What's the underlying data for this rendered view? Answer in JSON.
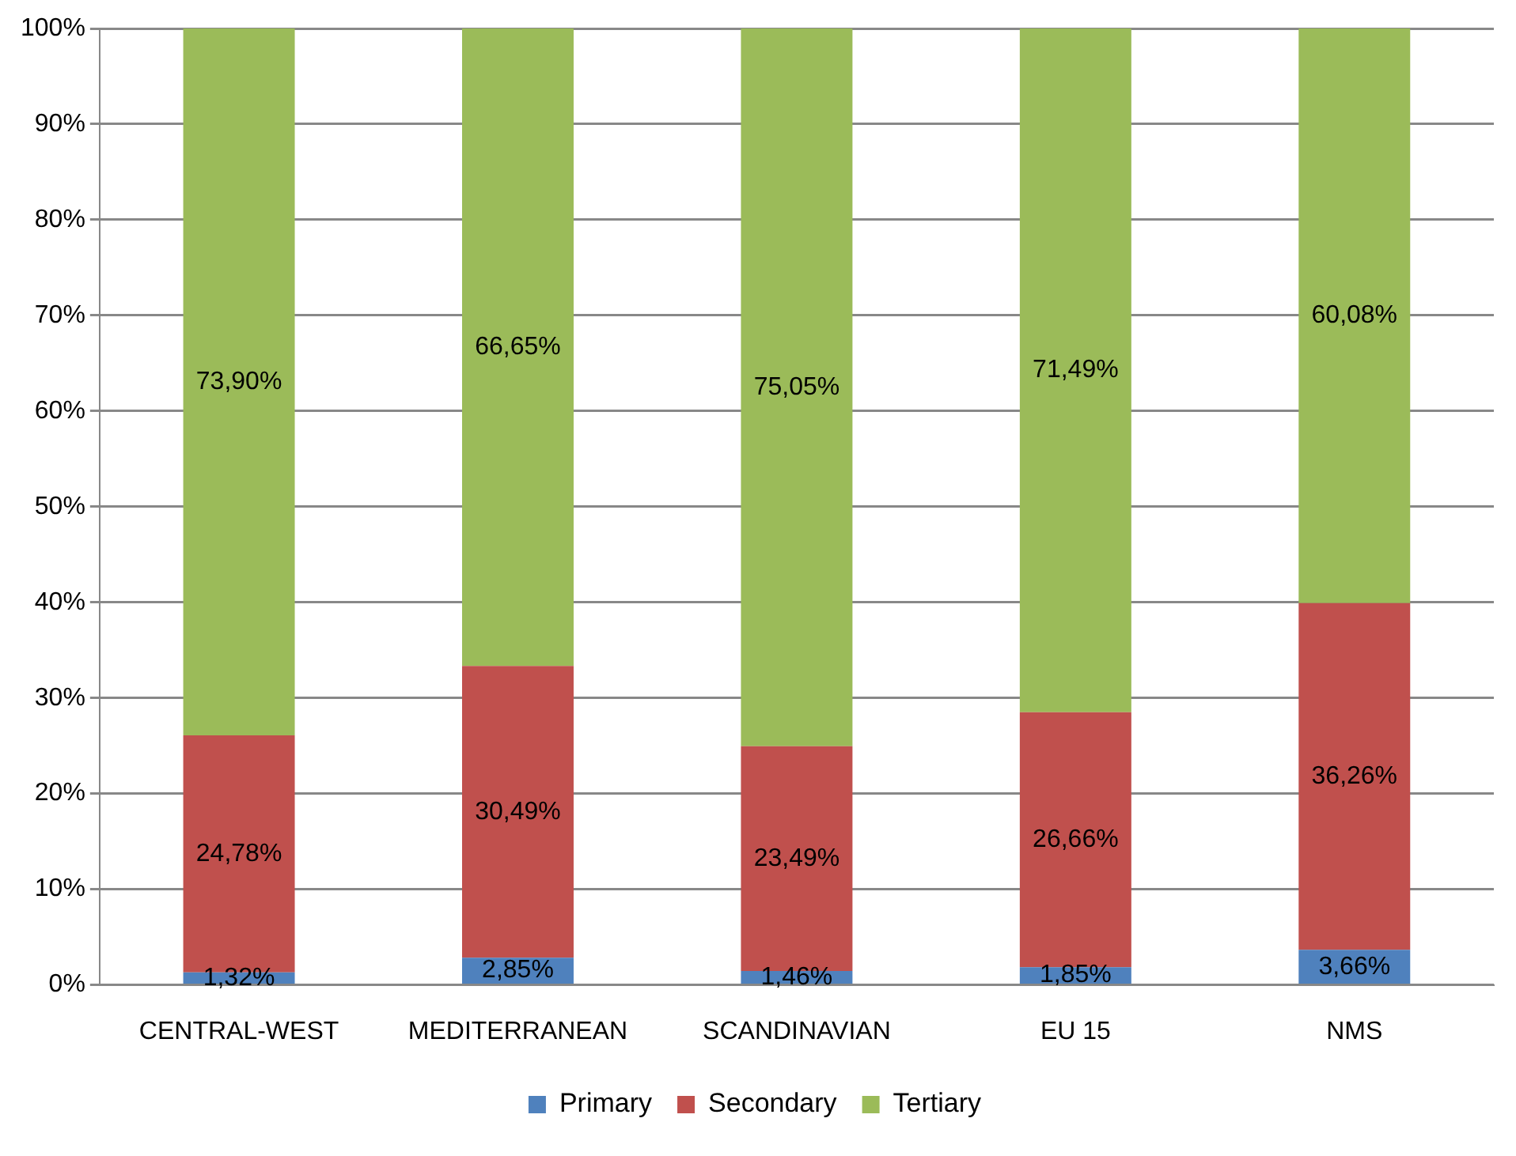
{
  "chart_data": {
    "type": "bar",
    "stacked": true,
    "categories": [
      "CENTRAL-WEST",
      "MEDITERRANEAN",
      "SCANDINAVIAN",
      "EU 15",
      "NMS"
    ],
    "series": [
      {
        "name": "Primary",
        "color": "#4f81bd",
        "values": [
          1.32,
          2.85,
          1.46,
          1.85,
          3.66
        ],
        "value_labels": [
          "1,32%",
          "2,85%",
          "1,46%",
          "1,85%",
          "3,66%"
        ]
      },
      {
        "name": "Secondary",
        "color": "#c0504d",
        "values": [
          24.78,
          30.49,
          23.49,
          26.66,
          36.26
        ],
        "value_labels": [
          "24,78%",
          "30,49%",
          "23,49%",
          "26,66%",
          "36,26%"
        ]
      },
      {
        "name": "Tertiary",
        "color": "#9bbb59",
        "values": [
          73.9,
          66.65,
          75.05,
          71.49,
          60.08
        ],
        "value_labels": [
          "73,90%",
          "66,65%",
          "75,05%",
          "71,49%",
          "60,08%"
        ]
      }
    ],
    "ylim": [
      0,
      100
    ],
    "yticks": [
      {
        "value": 0,
        "label": "0%"
      },
      {
        "value": 10,
        "label": "10%"
      },
      {
        "value": 20,
        "label": "20%"
      },
      {
        "value": 30,
        "label": "30%"
      },
      {
        "value": 40,
        "label": "40%"
      },
      {
        "value": 50,
        "label": "50%"
      },
      {
        "value": 60,
        "label": "60%"
      },
      {
        "value": 70,
        "label": "70%"
      },
      {
        "value": 80,
        "label": "80%"
      },
      {
        "value": 90,
        "label": "90%"
      },
      {
        "value": 100,
        "label": "100%"
      }
    ],
    "grid": "y",
    "legend": "bottom"
  }
}
